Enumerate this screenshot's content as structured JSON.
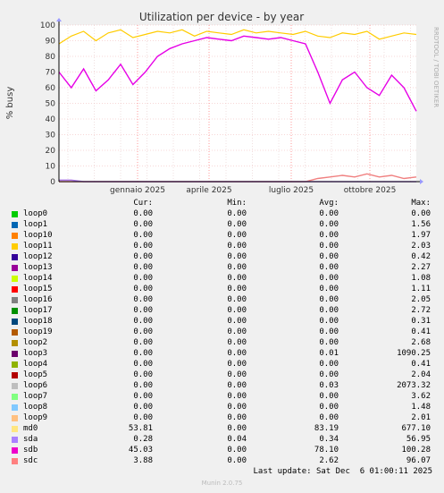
{
  "chart_data": {
    "type": "line",
    "title": "Utilization per device - by year",
    "ylabel": "% busy",
    "xlabel": "",
    "ylim": [
      0,
      100
    ],
    "y_ticks": [
      "0",
      "10",
      "20",
      "30",
      "40",
      "50",
      "60",
      "70",
      "80",
      "90",
      "100"
    ],
    "x_tick_labels": [
      "gennaio 2025",
      "aprile 2025",
      "luglio 2025",
      "ottobre 2025"
    ],
    "watermark": "RRDTOOL / TOBI OETIKER",
    "series": [
      {
        "name": "md0",
        "color": "#FFCC00",
        "values": [
          88,
          93,
          96,
          90,
          95,
          97,
          92,
          94,
          96,
          95,
          97,
          93,
          96,
          95,
          94,
          97,
          95,
          96,
          95,
          94,
          96,
          93,
          92,
          95,
          94,
          96,
          91,
          93,
          95,
          94
        ]
      },
      {
        "name": "sdb",
        "color": "#E600E6",
        "values": [
          70,
          60,
          72,
          58,
          65,
          75,
          62,
          70,
          80,
          85,
          88,
          90,
          92,
          91,
          90,
          93,
          92,
          91,
          92,
          90,
          88,
          70,
          50,
          65,
          70,
          60,
          55,
          68,
          60,
          45
        ]
      },
      {
        "name": "sdc",
        "color": "#F08080",
        "values": [
          0,
          0,
          0,
          0,
          0,
          0,
          0,
          0,
          0,
          0,
          0,
          0,
          0,
          0,
          0,
          0,
          0,
          0,
          0,
          0,
          0,
          2,
          3,
          4,
          3,
          5,
          3,
          4,
          2,
          3
        ]
      },
      {
        "name": "sda",
        "color": "#A570E0",
        "values": [
          1,
          1,
          0,
          0,
          0,
          0,
          0,
          0,
          0,
          0,
          0,
          0,
          0,
          0,
          0,
          0,
          0,
          0,
          0,
          0,
          0,
          0,
          0,
          0,
          0,
          0,
          0,
          0,
          0,
          0
        ]
      }
    ]
  },
  "legend": {
    "headers": {
      "cur": "Cur:",
      "min": "Min:",
      "avg": "Avg:",
      "max": "Max:"
    },
    "rows": [
      {
        "name": "loop0",
        "color": "#00CC00",
        "cur": "0.00",
        "min": "0.00",
        "avg": "0.00",
        "max": "0.00"
      },
      {
        "name": "loop1",
        "color": "#0066B3",
        "cur": "0.00",
        "min": "0.00",
        "avg": "0.00",
        "max": "1.56"
      },
      {
        "name": "loop10",
        "color": "#FF8000",
        "cur": "0.00",
        "min": "0.00",
        "avg": "0.00",
        "max": "1.97"
      },
      {
        "name": "loop11",
        "color": "#FFCC00",
        "cur": "0.00",
        "min": "0.00",
        "avg": "0.00",
        "max": "2.03"
      },
      {
        "name": "loop12",
        "color": "#330099",
        "cur": "0.00",
        "min": "0.00",
        "avg": "0.00",
        "max": "0.42"
      },
      {
        "name": "loop13",
        "color": "#990099",
        "cur": "0.00",
        "min": "0.00",
        "avg": "0.00",
        "max": "2.27"
      },
      {
        "name": "loop14",
        "color": "#CCFF00",
        "cur": "0.00",
        "min": "0.00",
        "avg": "0.00",
        "max": "1.08"
      },
      {
        "name": "loop15",
        "color": "#FF0000",
        "cur": "0.00",
        "min": "0.00",
        "avg": "0.00",
        "max": "1.11"
      },
      {
        "name": "loop16",
        "color": "#808080",
        "cur": "0.00",
        "min": "0.00",
        "avg": "0.00",
        "max": "2.05"
      },
      {
        "name": "loop17",
        "color": "#008F00",
        "cur": "0.00",
        "min": "0.00",
        "avg": "0.00",
        "max": "2.72"
      },
      {
        "name": "loop18",
        "color": "#00487D",
        "cur": "0.00",
        "min": "0.00",
        "avg": "0.00",
        "max": "0.31"
      },
      {
        "name": "loop19",
        "color": "#B35A00",
        "cur": "0.00",
        "min": "0.00",
        "avg": "0.00",
        "max": "0.41"
      },
      {
        "name": "loop2",
        "color": "#B38F00",
        "cur": "0.00",
        "min": "0.00",
        "avg": "0.00",
        "max": "2.68"
      },
      {
        "name": "loop3",
        "color": "#6B006B",
        "cur": "0.00",
        "min": "0.00",
        "avg": "0.01",
        "max": "1090.25"
      },
      {
        "name": "loop4",
        "color": "#8FB300",
        "cur": "0.00",
        "min": "0.00",
        "avg": "0.00",
        "max": "0.41"
      },
      {
        "name": "loop5",
        "color": "#B30000",
        "cur": "0.00",
        "min": "0.00",
        "avg": "0.00",
        "max": "2.04"
      },
      {
        "name": "loop6",
        "color": "#BEBEBE",
        "cur": "0.00",
        "min": "0.00",
        "avg": "0.03",
        "max": "2073.32"
      },
      {
        "name": "loop7",
        "color": "#80FF80",
        "cur": "0.00",
        "min": "0.00",
        "avg": "0.00",
        "max": "3.62"
      },
      {
        "name": "loop8",
        "color": "#80C9FF",
        "cur": "0.00",
        "min": "0.00",
        "avg": "0.00",
        "max": "1.48"
      },
      {
        "name": "loop9",
        "color": "#FFC080",
        "cur": "0.00",
        "min": "0.00",
        "avg": "0.00",
        "max": "2.01"
      },
      {
        "name": "md0",
        "color": "#FFE680",
        "cur": "53.81",
        "min": "0.00",
        "avg": "83.19",
        "max": "677.10"
      },
      {
        "name": "sda",
        "color": "#AA80FF",
        "cur": "0.28",
        "min": "0.04",
        "avg": "0.34",
        "max": "56.95"
      },
      {
        "name": "sdb",
        "color": "#EE00CC",
        "cur": "45.03",
        "min": "0.00",
        "avg": "78.10",
        "max": "100.28"
      },
      {
        "name": "sdc",
        "color": "#FF8080",
        "cur": "3.88",
        "min": "0.00",
        "avg": "2.62",
        "max": "96.07"
      }
    ]
  },
  "footer": {
    "last_update": "Last update: Sat Dec  6 01:00:11 2025",
    "version": "Munin 2.0.75"
  }
}
